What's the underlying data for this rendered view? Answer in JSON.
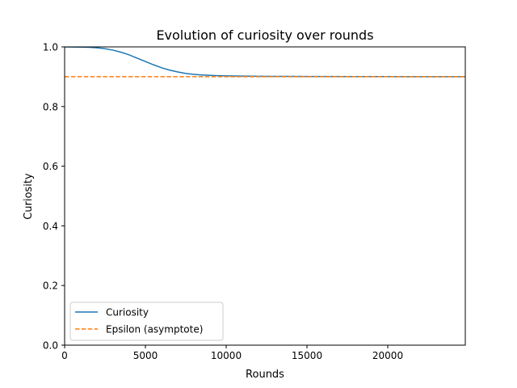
{
  "chart_data": {
    "type": "line",
    "title": "Evolution of curiosity over rounds",
    "xlabel": "Rounds",
    "ylabel": "Curiosity",
    "xlim": [
      0,
      24800
    ],
    "ylim": [
      0.0,
      1.0
    ],
    "xticks": [
      0,
      5000,
      10000,
      15000,
      20000
    ],
    "xtick_labels": [
      "0",
      "5000",
      "10000",
      "15000",
      "20000"
    ],
    "yticks": [
      0.0,
      0.2,
      0.4,
      0.6,
      0.8,
      1.0
    ],
    "ytick_labels": [
      "0.0",
      "0.2",
      "0.4",
      "0.6",
      "0.8",
      "1.0"
    ],
    "grid": false,
    "legend_position": "lower-left",
    "series": [
      {
        "name": "Curiosity",
        "style": "solid",
        "color": "#1f77b4",
        "x": [
          0,
          500,
          1000,
          1500,
          2000,
          2500,
          3000,
          3500,
          4000,
          4500,
          5000,
          5500,
          6000,
          6500,
          7000,
          7500,
          8000,
          8500,
          9000,
          9500,
          10000,
          11000,
          12000,
          13000,
          14000,
          15000,
          16000,
          18000,
          20000,
          22000,
          24800
        ],
        "y": [
          1.0,
          0.9998,
          0.9993,
          0.9985,
          0.997,
          0.994,
          0.989,
          0.982,
          0.973,
          0.962,
          0.951,
          0.94,
          0.93,
          0.922,
          0.916,
          0.911,
          0.908,
          0.906,
          0.9045,
          0.9035,
          0.9028,
          0.902,
          0.9015,
          0.9012,
          0.901,
          0.9008,
          0.9006,
          0.9004,
          0.9003,
          0.9002,
          0.9001
        ]
      },
      {
        "name": "Epsilon (asymptote)",
        "style": "dashed",
        "color": "#ff7f0e",
        "x": [
          0,
          24800
        ],
        "y": [
          0.9,
          0.9
        ]
      }
    ]
  }
}
